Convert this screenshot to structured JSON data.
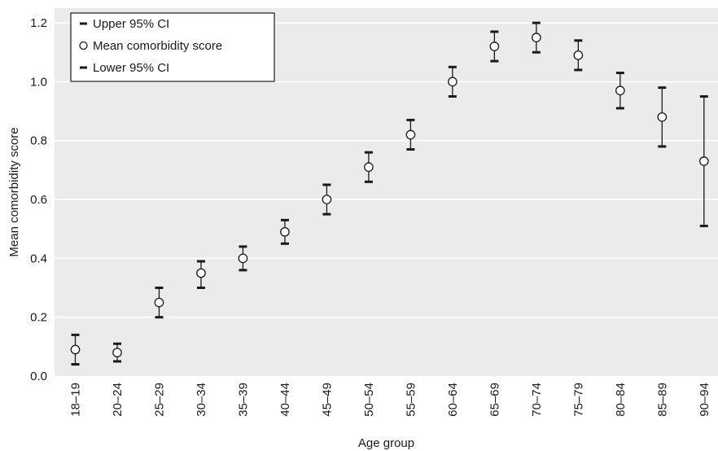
{
  "chart_data": {
    "type": "scatter",
    "title": "",
    "xlabel": "Age group",
    "ylabel": "Mean comorbidity score",
    "ylim": [
      0,
      1.25
    ],
    "yticks": [
      0.0,
      0.2,
      0.4,
      0.6,
      0.8,
      1.0,
      1.2
    ],
    "ytick_labels": [
      "0.0",
      "0.2",
      "0.4",
      "0.6",
      "0.8",
      "1.0",
      "1.2"
    ],
    "grid": "horizontal",
    "legend_position": "top-left",
    "categories": [
      "18–19",
      "20–24",
      "25–29",
      "30–34",
      "35–39",
      "40–44",
      "45–49",
      "50–54",
      "55–59",
      "60–64",
      "65–69",
      "70–74",
      "75–79",
      "80–84",
      "85–89",
      "90–94"
    ],
    "series": [
      {
        "name": "Upper 95% CI",
        "marker": "bar",
        "values": [
          0.14,
          0.11,
          0.3,
          0.39,
          0.44,
          0.53,
          0.65,
          0.76,
          0.87,
          1.05,
          1.17,
          1.2,
          1.14,
          1.03,
          0.98,
          0.95
        ]
      },
      {
        "name": "Mean comorbidity score",
        "marker": "circle",
        "values": [
          0.09,
          0.08,
          0.25,
          0.35,
          0.4,
          0.49,
          0.6,
          0.71,
          0.82,
          1.0,
          1.12,
          1.15,
          1.09,
          0.97,
          0.88,
          0.73
        ]
      },
      {
        "name": "Lower 95% CI",
        "marker": "bar",
        "values": [
          0.04,
          0.05,
          0.2,
          0.3,
          0.36,
          0.45,
          0.55,
          0.66,
          0.77,
          0.95,
          1.07,
          1.1,
          1.04,
          0.91,
          0.78,
          0.51
        ]
      }
    ],
    "colors": {
      "background": "#ebebeb",
      "grid": "#ffffff",
      "ink": "#1a1a1a",
      "marker_fill": "#ffffff"
    }
  }
}
